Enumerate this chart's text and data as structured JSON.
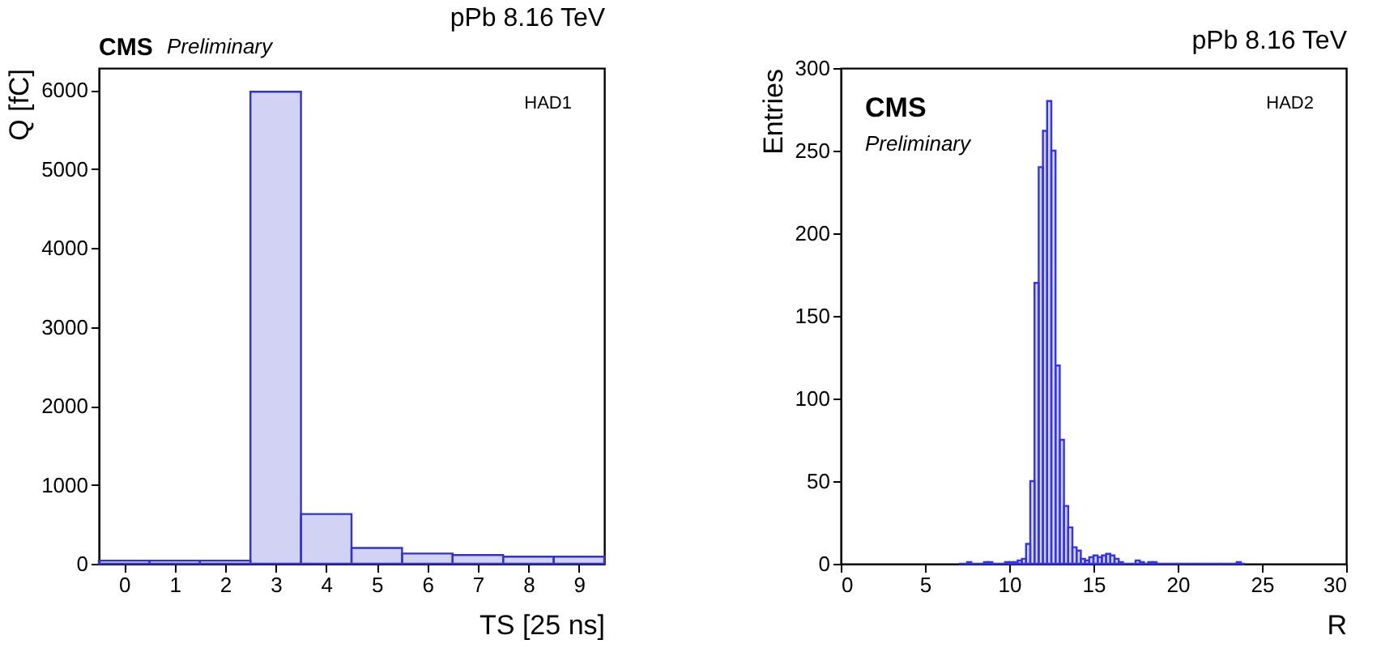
{
  "chart_data": [
    {
      "type": "histogram",
      "title": "pPb 8.16 TeV",
      "xlabel": "TS [25 ns]",
      "ylabel": "Q [fC]",
      "annotations": [
        "CMS",
        "Preliminary",
        "HAD1"
      ],
      "bins": [
        -0.5,
        0.5,
        1.5,
        2.5,
        3.5,
        4.5,
        5.5,
        6.5,
        7.5,
        8.5,
        9.5
      ],
      "values": [
        40,
        40,
        40,
        5980,
        630,
        200,
        130,
        110,
        90,
        90
      ],
      "color": "#3333cc",
      "xlim": [
        -0.5,
        9.5
      ],
      "xticks": [
        0,
        1,
        2,
        3,
        4,
        5,
        6,
        7,
        8,
        9
      ],
      "ylim": [
        0,
        6280
      ],
      "yticks": [
        0,
        1000,
        2000,
        3000,
        4000,
        5000,
        6000
      ]
    },
    {
      "type": "histogram",
      "title": "pPb 8.16 TeV",
      "xlabel": "R",
      "ylabel": "Entries",
      "annotations": [
        "CMS",
        "Preliminary",
        "HAD2"
      ],
      "bins": [
        7,
        7.25,
        7.5,
        7.75,
        8,
        8.25,
        8.5,
        8.75,
        9,
        9.25,
        9.5,
        9.75,
        10,
        10.25,
        10.5,
        10.75,
        11,
        11.25,
        11.5,
        11.75,
        12,
        12.25,
        12.5,
        12.75,
        13,
        13.25,
        13.5,
        13.75,
        14,
        14.25,
        14.5,
        14.75,
        15,
        15.25,
        15.5,
        15.75,
        16,
        16.25,
        16.5,
        16.75,
        17,
        17.25,
        17.5,
        17.75,
        18,
        18.25,
        18.5,
        18.75,
        19,
        19.25,
        19.5,
        19.75,
        20,
        20.25,
        20.5,
        20.75,
        21,
        21.25,
        21.5,
        21.75,
        22,
        22.25,
        22.5,
        22.75,
        23,
        23.25,
        23.5,
        23.75,
        24
      ],
      "values": [
        0,
        0,
        1,
        0,
        0,
        0,
        1,
        1,
        0,
        0,
        0,
        1,
        1,
        1,
        2,
        3,
        12,
        50,
        170,
        240,
        262,
        280,
        250,
        120,
        75,
        35,
        22,
        10,
        8,
        3,
        2,
        4,
        5,
        4,
        5,
        6,
        5,
        3,
        1,
        0,
        0,
        0,
        2,
        1,
        0,
        1,
        1,
        0,
        0,
        0,
        0,
        0,
        0,
        0,
        0,
        0,
        0,
        0,
        0,
        0,
        0,
        0,
        0,
        0,
        0,
        0,
        1,
        0
      ],
      "color": "#3333ee",
      "xlim": [
        0,
        30
      ],
      "xticks": [
        0,
        5,
        10,
        15,
        20,
        25,
        30
      ],
      "ylim": [
        0,
        300
      ],
      "yticks": [
        0,
        50,
        100,
        150,
        200,
        250,
        300
      ]
    }
  ]
}
